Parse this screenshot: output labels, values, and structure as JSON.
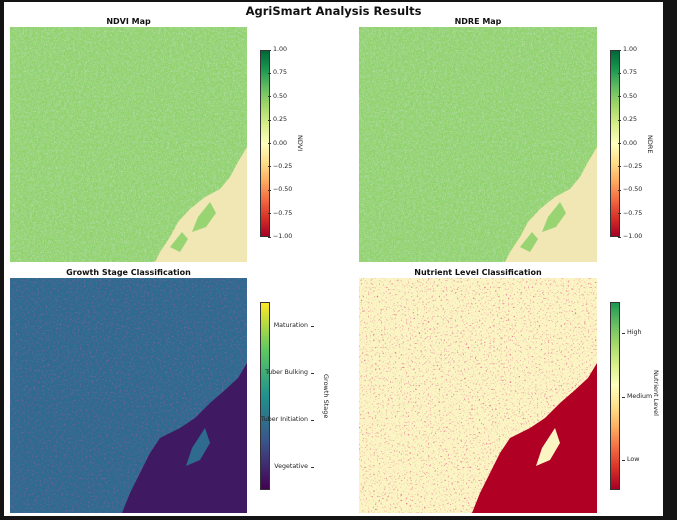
{
  "figure": {
    "title": "AgriSmart Analysis Results"
  },
  "panels": {
    "ndvi": {
      "title": "NDVI Map",
      "colorbar": {
        "label": "NDVI",
        "ticks": [
          "1.00",
          "0.75",
          "0.50",
          "0.25",
          "0.00",
          "−0.25",
          "−0.50",
          "−0.75",
          "−1.00"
        ],
        "range": [
          -1,
          1
        ],
        "colormap": "RdYlGn"
      }
    },
    "ndre": {
      "title": "NDRE Map",
      "colorbar": {
        "label": "NDRE",
        "ticks": [
          "1.00",
          "0.75",
          "0.50",
          "0.25",
          "0.00",
          "−0.25",
          "−0.50",
          "−0.75",
          "−1.00"
        ],
        "range": [
          -1,
          1
        ],
        "colormap": "RdYlGn"
      }
    },
    "growth": {
      "title": "Growth Stage Classification",
      "colorbar": {
        "label": "Growth Stage",
        "ticks": [
          "Maturation",
          "Tuber Bulking",
          "Tuber Initiation",
          "Vegetative"
        ],
        "colormap": "viridis"
      }
    },
    "nutrient": {
      "title": "Nutrient Level Classification",
      "colorbar": {
        "label": "Nutrient Level",
        "ticks": [
          "High",
          "Medium",
          "Low"
        ],
        "colormap": "RdYlGn"
      }
    }
  },
  "colors": {
    "ndvi_base": "#8fd16b",
    "ndvi_dark": "#5fb357",
    "bare_land": "#f0e7b4",
    "growth_base": "#2f6b8e",
    "growth_low": "#3f1a62",
    "growth_high": "#4fc07a",
    "nutrient_base": "#fbf5c4",
    "nutrient_low": "#b00024",
    "nutrient_high": "#2f8a4a"
  }
}
